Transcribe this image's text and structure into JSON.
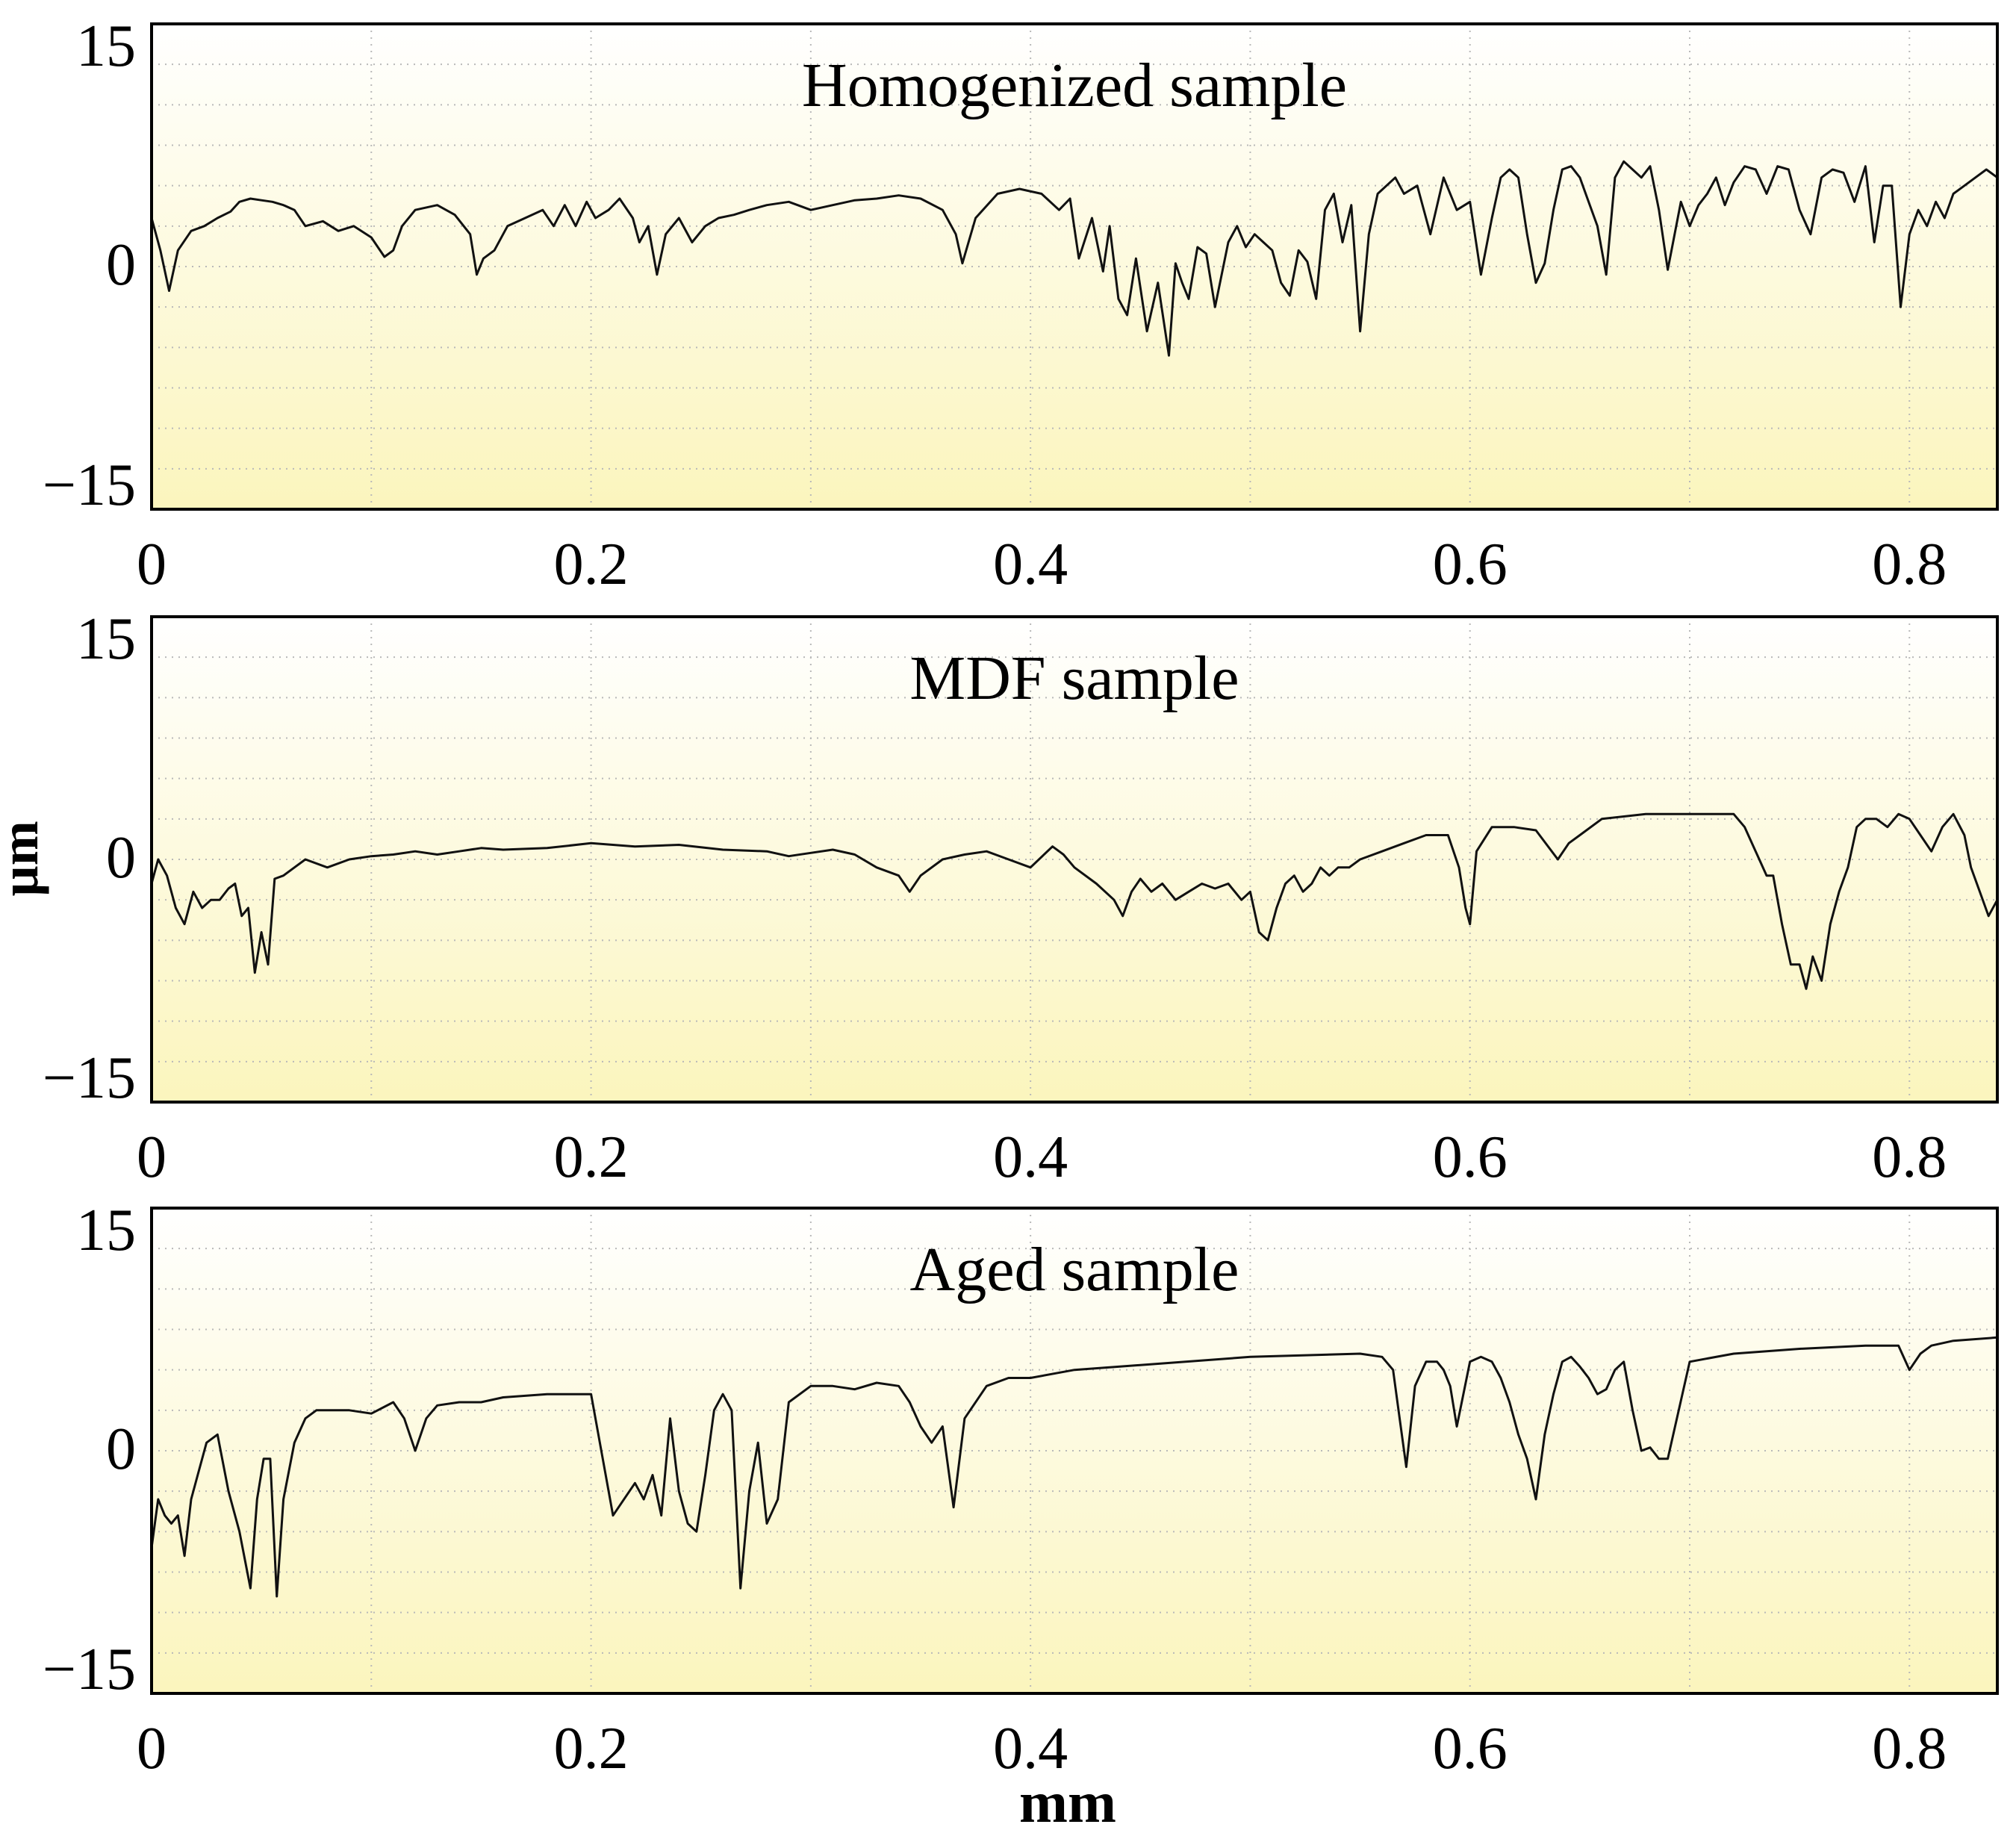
{
  "figure": {
    "xlabel": "mm",
    "ylabel": "µm"
  },
  "chart_data": [
    {
      "type": "line",
      "title": "Homogenized sample",
      "xlabel": "mm",
      "ylabel": "µm",
      "xlim": [
        0,
        0.84
      ],
      "ylim": [
        -15,
        15
      ],
      "xticks": [
        0,
        0.2,
        0.4,
        0.6,
        0.8
      ],
      "xtick_labels": [
        "0",
        "0.2",
        "0.4",
        "0.6",
        "0.8"
      ],
      "yticks": [
        15,
        0,
        -15
      ],
      "ytick_labels": [
        "15",
        "0",
        "−15"
      ],
      "grid": true,
      "series": [
        {
          "name": "Homogenized sample",
          "x": [
            0.0,
            0.004,
            0.008,
            0.012,
            0.018,
            0.024,
            0.03,
            0.036,
            0.04,
            0.045,
            0.05,
            0.055,
            0.06,
            0.065,
            0.07,
            0.078,
            0.085,
            0.092,
            0.1,
            0.106,
            0.11,
            0.114,
            0.12,
            0.13,
            0.138,
            0.145,
            0.148,
            0.151,
            0.156,
            0.162,
            0.17,
            0.178,
            0.183,
            0.188,
            0.193,
            0.198,
            0.202,
            0.208,
            0.213,
            0.219,
            0.222,
            0.226,
            0.23,
            0.234,
            0.24,
            0.246,
            0.252,
            0.258,
            0.265,
            0.272,
            0.28,
            0.29,
            0.3,
            0.31,
            0.32,
            0.33,
            0.34,
            0.35,
            0.36,
            0.366,
            0.369,
            0.375,
            0.385,
            0.395,
            0.405,
            0.413,
            0.418,
            0.422,
            0.428,
            0.433,
            0.436,
            0.44,
            0.444,
            0.448,
            0.453,
            0.458,
            0.463,
            0.466,
            0.469,
            0.472,
            0.476,
            0.48,
            0.484,
            0.49,
            0.494,
            0.498,
            0.502,
            0.506,
            0.51,
            0.514,
            0.518,
            0.522,
            0.526,
            0.53,
            0.534,
            0.538,
            0.542,
            0.546,
            0.55,
            0.554,
            0.558,
            0.562,
            0.566,
            0.57,
            0.576,
            0.582,
            0.588,
            0.594,
            0.6,
            0.605,
            0.61,
            0.614,
            0.618,
            0.622,
            0.626,
            0.63,
            0.634,
            0.638,
            0.642,
            0.646,
            0.65,
            0.654,
            0.658,
            0.662,
            0.666,
            0.67,
            0.674,
            0.678,
            0.682,
            0.686,
            0.69,
            0.696,
            0.7,
            0.704,
            0.708,
            0.712,
            0.716,
            0.72,
            0.725,
            0.73,
            0.735,
            0.74,
            0.745,
            0.75,
            0.755,
            0.76,
            0.765,
            0.77,
            0.775,
            0.78,
            0.784,
            0.788,
            0.792,
            0.796,
            0.8,
            0.804,
            0.808,
            0.812,
            0.816,
            0.82,
            0.825,
            0.83,
            0.835,
            0.84
          ],
          "values": [
            3.0,
            1.0,
            -1.5,
            1.0,
            2.2,
            2.5,
            3.0,
            3.4,
            4.0,
            4.2,
            4.1,
            4.0,
            3.8,
            3.5,
            2.5,
            2.8,
            2.2,
            2.5,
            1.8,
            0.6,
            1.0,
            2.5,
            3.5,
            3.8,
            3.2,
            2.0,
            -0.5,
            0.5,
            1.0,
            2.5,
            3.0,
            3.5,
            2.5,
            3.8,
            2.5,
            4.0,
            3.0,
            3.5,
            4.2,
            3.0,
            1.5,
            2.5,
            -0.5,
            2.0,
            3.0,
            1.5,
            2.5,
            3.0,
            3.2,
            3.5,
            3.8,
            4.0,
            3.5,
            3.8,
            4.1,
            4.2,
            4.4,
            4.2,
            3.5,
            2.0,
            0.2,
            3.0,
            4.5,
            4.8,
            4.5,
            3.5,
            4.2,
            0.5,
            3.0,
            -0.3,
            2.5,
            -2.0,
            -3.0,
            0.5,
            -4.0,
            -1.0,
            -5.5,
            0.2,
            -1.0,
            -2.0,
            1.2,
            0.8,
            -2.5,
            1.5,
            2.5,
            1.2,
            2.0,
            1.5,
            1.0,
            -1.0,
            -1.8,
            1.0,
            0.3,
            -2.0,
            3.5,
            4.5,
            1.5,
            3.8,
            -4.0,
            2.0,
            4.5,
            5.0,
            5.5,
            4.5,
            5.0,
            2.0,
            5.5,
            3.5,
            4.0,
            -0.5,
            3.0,
            5.5,
            6.0,
            5.5,
            2.0,
            -1.0,
            0.2,
            3.5,
            6.0,
            6.2,
            5.5,
            4.0,
            2.5,
            -0.5,
            5.5,
            6.5,
            6.0,
            5.5,
            6.2,
            3.5,
            -0.2,
            4.0,
            2.5,
            3.8,
            4.5,
            5.5,
            3.8,
            5.2,
            6.2,
            6.0,
            4.5,
            6.2,
            6.0,
            3.5,
            2.0,
            5.5,
            6.0,
            5.8,
            4.0,
            6.2,
            1.5,
            5.0,
            5.0,
            -2.5,
            2.0,
            3.5,
            2.5,
            4.0,
            3.0,
            4.5,
            5.0,
            5.5,
            6.0,
            5.5
          ]
        }
      ]
    },
    {
      "type": "line",
      "title": "MDF sample",
      "xlabel": "mm",
      "ylabel": "µm",
      "xlim": [
        0,
        0.84
      ],
      "ylim": [
        -15,
        15
      ],
      "xticks": [
        0,
        0.2,
        0.4,
        0.6,
        0.8
      ],
      "xtick_labels": [
        "0",
        "0.2",
        "0.4",
        "0.6",
        "0.8"
      ],
      "yticks": [
        15,
        0,
        -15
      ],
      "ytick_labels": [
        "15",
        "0",
        "−15"
      ],
      "grid": true,
      "series": [
        {
          "name": "MDF sample",
          "x": [
            0.0,
            0.003,
            0.007,
            0.011,
            0.015,
            0.019,
            0.023,
            0.027,
            0.031,
            0.035,
            0.038,
            0.041,
            0.044,
            0.047,
            0.05,
            0.053,
            0.056,
            0.06,
            0.065,
            0.07,
            0.08,
            0.09,
            0.1,
            0.11,
            0.12,
            0.13,
            0.14,
            0.15,
            0.16,
            0.18,
            0.2,
            0.22,
            0.24,
            0.26,
            0.28,
            0.29,
            0.3,
            0.31,
            0.32,
            0.33,
            0.34,
            0.345,
            0.35,
            0.36,
            0.37,
            0.38,
            0.39,
            0.4,
            0.41,
            0.415,
            0.42,
            0.43,
            0.438,
            0.442,
            0.446,
            0.45,
            0.455,
            0.46,
            0.466,
            0.472,
            0.478,
            0.484,
            0.49,
            0.496,
            0.5,
            0.504,
            0.508,
            0.512,
            0.516,
            0.52,
            0.524,
            0.528,
            0.532,
            0.536,
            0.54,
            0.545,
            0.55,
            0.56,
            0.57,
            0.58,
            0.59,
            0.595,
            0.598,
            0.6,
            0.603,
            0.61,
            0.62,
            0.63,
            0.64,
            0.645,
            0.65,
            0.66,
            0.68,
            0.7,
            0.72,
            0.725,
            0.73,
            0.735,
            0.738,
            0.742,
            0.746,
            0.75,
            0.753,
            0.756,
            0.76,
            0.764,
            0.768,
            0.772,
            0.776,
            0.78,
            0.785,
            0.79,
            0.795,
            0.8,
            0.805,
            0.81,
            0.815,
            0.82,
            0.825,
            0.828,
            0.832,
            0.836,
            0.84
          ],
          "values": [
            -1.5,
            0.0,
            -1.0,
            -3.0,
            -4.0,
            -2.0,
            -3.0,
            -2.5,
            -2.5,
            -1.8,
            -1.5,
            -3.5,
            -3.0,
            -7.0,
            -4.5,
            -6.5,
            -1.2,
            -1.0,
            -0.5,
            0.0,
            -0.5,
            0.0,
            0.2,
            0.3,
            0.5,
            0.3,
            0.5,
            0.7,
            0.6,
            0.7,
            1.0,
            0.8,
            0.9,
            0.6,
            0.5,
            0.2,
            0.4,
            0.6,
            0.3,
            -0.5,
            -1.0,
            -2.0,
            -1.0,
            0.0,
            0.3,
            0.5,
            0.0,
            -0.5,
            0.8,
            0.3,
            -0.5,
            -1.5,
            -2.5,
            -3.5,
            -2.0,
            -1.2,
            -2.0,
            -1.5,
            -2.5,
            -2.0,
            -1.5,
            -1.8,
            -1.5,
            -2.5,
            -2.0,
            -4.5,
            -5.0,
            -3.0,
            -1.5,
            -1.0,
            -2.0,
            -1.5,
            -0.5,
            -1.0,
            -0.5,
            -0.5,
            0.0,
            0.5,
            1.0,
            1.5,
            1.5,
            -0.5,
            -3.0,
            -4.0,
            0.5,
            2.0,
            2.0,
            1.8,
            0.0,
            1.0,
            1.5,
            2.5,
            2.8,
            2.8,
            2.8,
            2.0,
            0.5,
            -1.0,
            -1.0,
            -4.0,
            -6.5,
            -6.5,
            -8.0,
            -6.0,
            -7.5,
            -4.0,
            -2.0,
            -0.5,
            2.0,
            2.5,
            2.5,
            2.0,
            2.8,
            2.5,
            1.5,
            0.5,
            2.0,
            2.8,
            1.5,
            -0.5,
            -2.0,
            -3.5,
            -2.5
          ]
        }
      ]
    },
    {
      "type": "line",
      "title": "Aged sample",
      "xlabel": "mm",
      "ylabel": "µm",
      "xlim": [
        0,
        0.84
      ],
      "ylim": [
        -15,
        15
      ],
      "xticks": [
        0,
        0.2,
        0.4,
        0.6,
        0.8
      ],
      "xtick_labels": [
        "0",
        "0.2",
        "0.4",
        "0.6",
        "0.8"
      ],
      "yticks": [
        15,
        0,
        -15
      ],
      "ytick_labels": [
        "15",
        "0",
        "−15"
      ],
      "grid": true,
      "series": [
        {
          "name": "Aged sample",
          "x": [
            0.0,
            0.003,
            0.006,
            0.009,
            0.012,
            0.015,
            0.018,
            0.021,
            0.025,
            0.03,
            0.035,
            0.04,
            0.045,
            0.048,
            0.051,
            0.054,
            0.057,
            0.06,
            0.065,
            0.07,
            0.075,
            0.08,
            0.09,
            0.1,
            0.11,
            0.115,
            0.12,
            0.125,
            0.13,
            0.14,
            0.15,
            0.16,
            0.18,
            0.2,
            0.21,
            0.22,
            0.224,
            0.228,
            0.232,
            0.236,
            0.24,
            0.244,
            0.248,
            0.252,
            0.256,
            0.26,
            0.264,
            0.268,
            0.272,
            0.276,
            0.28,
            0.285,
            0.29,
            0.3,
            0.31,
            0.32,
            0.33,
            0.34,
            0.345,
            0.35,
            0.355,
            0.36,
            0.365,
            0.37,
            0.38,
            0.39,
            0.4,
            0.42,
            0.45,
            0.5,
            0.55,
            0.56,
            0.565,
            0.568,
            0.571,
            0.575,
            0.58,
            0.585,
            0.588,
            0.591,
            0.594,
            0.6,
            0.605,
            0.61,
            0.614,
            0.618,
            0.622,
            0.626,
            0.63,
            0.634,
            0.638,
            0.642,
            0.646,
            0.65,
            0.654,
            0.658,
            0.662,
            0.666,
            0.67,
            0.674,
            0.678,
            0.682,
            0.686,
            0.69,
            0.7,
            0.72,
            0.75,
            0.78,
            0.795,
            0.8,
            0.805,
            0.81,
            0.82,
            0.84
          ],
          "values": [
            -6.0,
            -3.0,
            -4.0,
            -4.5,
            -4.0,
            -6.5,
            -3.0,
            -1.5,
            0.5,
            1.0,
            -2.5,
            -5.0,
            -8.5,
            -3.0,
            -0.5,
            -0.5,
            -9.0,
            -3.0,
            0.5,
            2.0,
            2.5,
            2.5,
            2.5,
            2.3,
            3.0,
            2.0,
            0.0,
            2.0,
            2.8,
            3.0,
            3.0,
            3.3,
            3.5,
            3.5,
            -4.0,
            -2.0,
            -3.0,
            -1.5,
            -4.0,
            2.0,
            -2.5,
            -4.5,
            -5.0,
            -1.5,
            2.5,
            3.5,
            2.5,
            -8.5,
            -2.5,
            0.5,
            -4.5,
            -3.0,
            3.0,
            4.0,
            4.0,
            3.8,
            4.2,
            4.0,
            3.0,
            1.5,
            0.5,
            1.5,
            -3.5,
            2.0,
            4.0,
            4.5,
            4.5,
            5.0,
            5.3,
            5.8,
            6.0,
            5.8,
            5.0,
            2.0,
            -1.0,
            4.0,
            5.5,
            5.5,
            5.0,
            4.0,
            1.5,
            5.5,
            5.8,
            5.5,
            4.5,
            3.0,
            1.0,
            -0.5,
            -3.0,
            1.0,
            3.5,
            5.5,
            5.8,
            5.2,
            4.5,
            3.5,
            3.8,
            5.0,
            5.5,
            2.5,
            0.0,
            0.2,
            -0.5,
            -0.5,
            5.5,
            6.0,
            6.3,
            6.5,
            6.5,
            5.0,
            6.0,
            6.5,
            6.8,
            7.0
          ]
        }
      ]
    }
  ]
}
